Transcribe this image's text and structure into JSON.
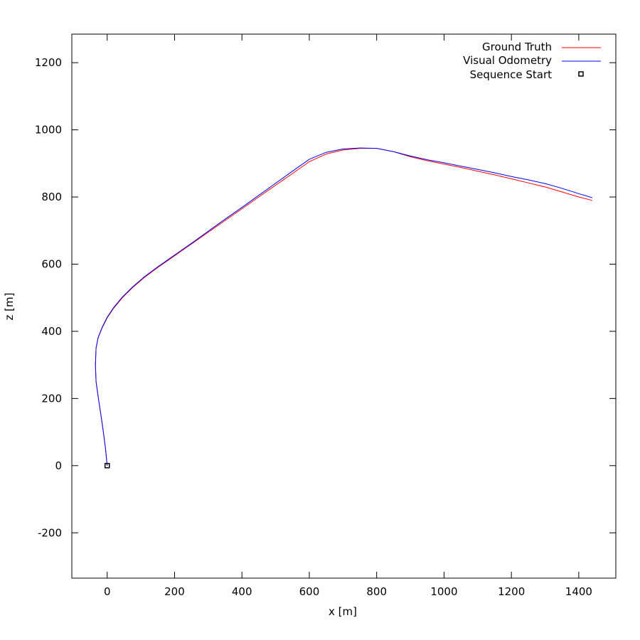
{
  "chart_data": {
    "type": "line",
    "xlabel": "x [m]",
    "ylabel": "z [m]",
    "xlim": [
      -105,
      1510
    ],
    "ylim": [
      -335,
      1285
    ],
    "xticks": [
      0,
      200,
      400,
      600,
      800,
      1000,
      1200,
      1400
    ],
    "yticks": [
      -200,
      0,
      200,
      400,
      600,
      800,
      1000,
      1200
    ],
    "xtick_labels": [
      "0",
      "200",
      "400",
      "600",
      "800",
      "1000",
      "1200",
      "1400"
    ],
    "ytick_labels": [
      "-200",
      "0",
      "200",
      "400",
      "600",
      "800",
      "1000",
      "1200"
    ],
    "legend_position": "top-right",
    "grid": false,
    "series": [
      {
        "name": "Ground Truth",
        "color": "#ff0000",
        "style": "line",
        "x": [
          0,
          -2,
          -5,
          -10,
          -17,
          -26,
          -33,
          -35,
          -33,
          -27,
          -15,
          0,
          20,
          45,
          75,
          110,
          150,
          200,
          250,
          300,
          350,
          400,
          450,
          500,
          550,
          600,
          650,
          700,
          750,
          800,
          850,
          900,
          950,
          1000,
          1050,
          1100,
          1150,
          1200,
          1250,
          1300,
          1350,
          1400,
          1440
        ],
        "y": [
          0,
          20,
          50,
          90,
          140,
          200,
          250,
          300,
          350,
          380,
          410,
          440,
          470,
          500,
          530,
          560,
          590,
          625,
          660,
          695,
          730,
          765,
          800,
          835,
          870,
          905,
          928,
          940,
          945,
          945,
          935,
          920,
          908,
          898,
          888,
          877,
          866,
          854,
          842,
          830,
          815,
          800,
          790
        ]
      },
      {
        "name": "Visual Odometry",
        "color": "#0000ff",
        "style": "line",
        "x": [
          0,
          -2,
          -5,
          -10,
          -17,
          -26,
          -33,
          -35,
          -33,
          -27,
          -15,
          0,
          20,
          45,
          75,
          110,
          150,
          200,
          250,
          300,
          350,
          400,
          450,
          500,
          550,
          600,
          650,
          700,
          750,
          800,
          850,
          900,
          950,
          1000,
          1050,
          1100,
          1150,
          1200,
          1250,
          1300,
          1350,
          1400,
          1440
        ],
        "y": [
          0,
          20,
          50,
          90,
          140,
          200,
          250,
          300,
          350,
          381,
          412,
          442,
          472,
          502,
          532,
          562,
          592,
          627,
          662,
          698,
          734,
          769,
          805,
          841,
          877,
          912,
          933,
          943,
          946,
          945,
          935,
          922,
          911,
          902,
          892,
          882,
          872,
          861,
          851,
          840,
          826,
          810,
          798
        ]
      },
      {
        "name": "Sequence Start",
        "color": "#000000",
        "style": "marker",
        "x": [
          0
        ],
        "y": [
          0
        ]
      }
    ]
  }
}
